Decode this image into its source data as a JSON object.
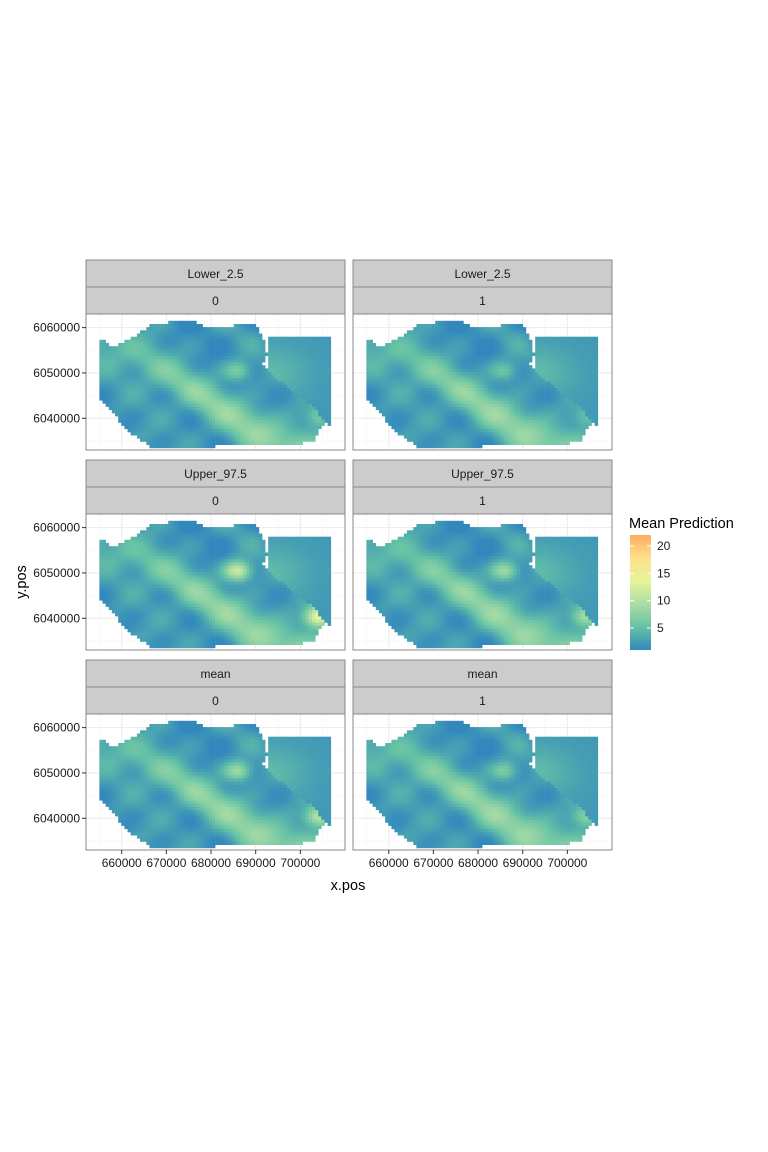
{
  "chart_data": {
    "type": "heatmap",
    "facet_rows": [
      "Lower_2.5",
      "Upper_97.5",
      "mean"
    ],
    "facet_cols": [
      "0",
      "1"
    ],
    "xlabel": "x.pos",
    "ylabel": "y.pos",
    "x_ticks": [
      660000,
      670000,
      680000,
      690000,
      700000
    ],
    "y_ticks": [
      6040000,
      6050000,
      6060000
    ],
    "xlim": [
      652000,
      710000
    ],
    "ylim": [
      6033000,
      6063000
    ],
    "grid": true,
    "legend": {
      "title": "Mean Prediction",
      "placement": "right",
      "ticks": [
        5,
        10,
        15,
        20
      ],
      "range": [
        1,
        22
      ],
      "colors": [
        "#3288bd",
        "#66c2a5",
        "#abdda4",
        "#e6f598",
        "#fee08b",
        "#fdae61"
      ]
    },
    "field_peaks": [
      {
        "x": 686000,
        "y": 6050500,
        "Lower_2.5": [
          12,
          11
        ],
        "Upper_97.5": [
          17,
          14
        ],
        "mean": [
          14,
          12
        ]
      },
      {
        "x": 704000,
        "y": 6040500,
        "Lower_2.5": [
          11,
          10
        ],
        "Upper_97.5": [
          19,
          14
        ],
        "mean": [
          15,
          12
        ]
      }
    ],
    "background_value": 2
  }
}
